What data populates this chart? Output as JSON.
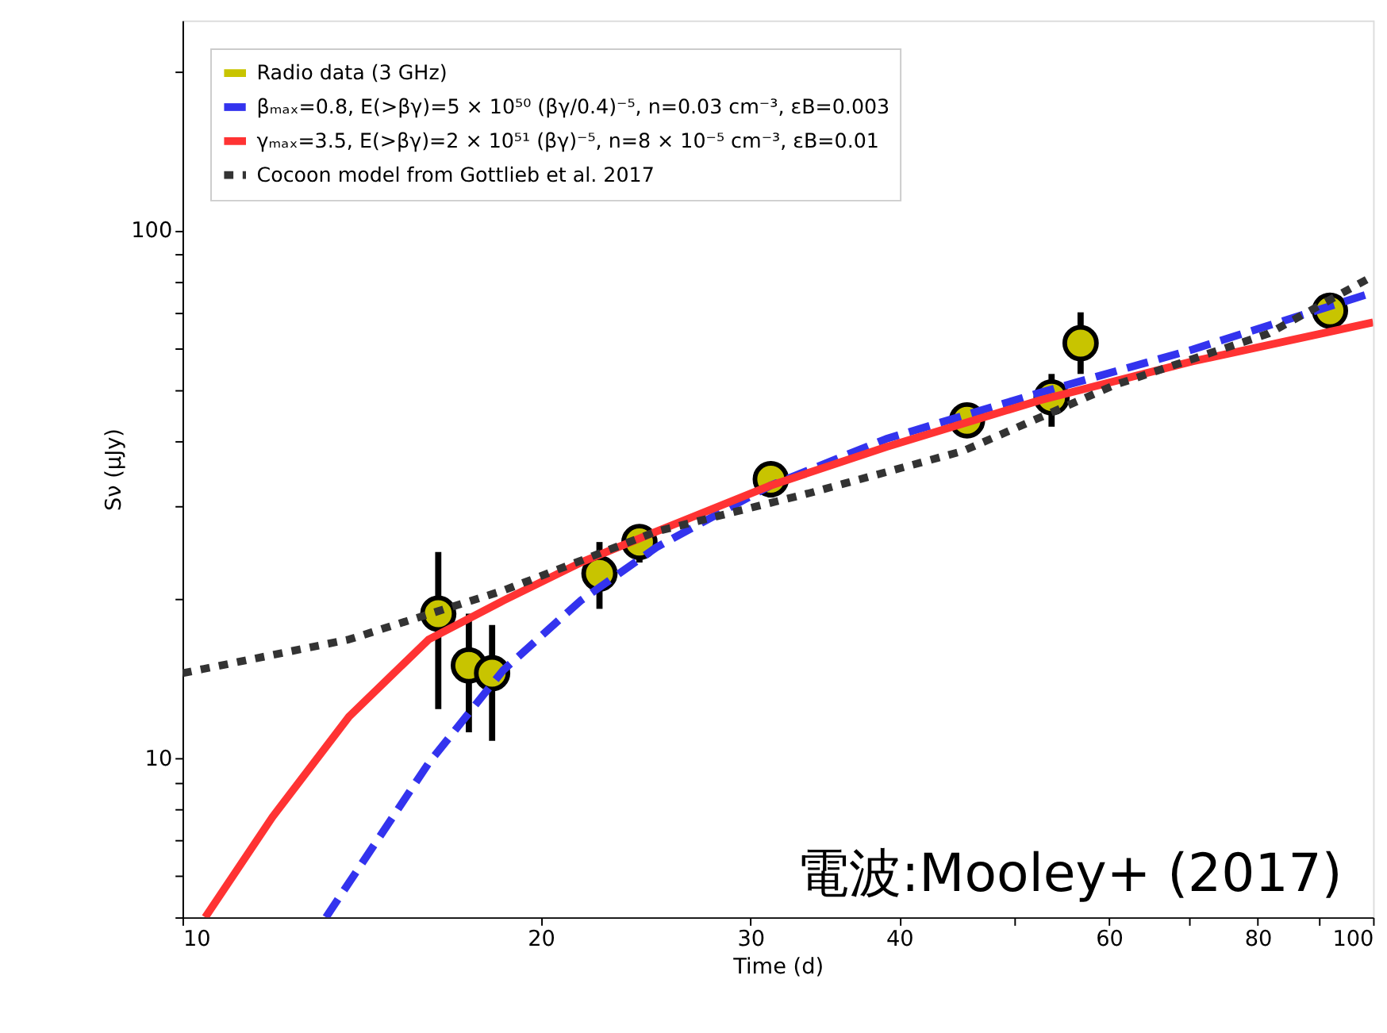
{
  "chart_data": {
    "type": "line",
    "xlabel": "Time (d)",
    "ylabel": "Sν (μJy)",
    "log": "xy",
    "grid": false,
    "legend": "top left",
    "xlim": [
      10,
      100
    ],
    "ylim": [
      5,
      250
    ],
    "xticks": [
      10,
      20,
      30,
      40,
      {
        "value": 50,
        "label": null
      },
      60,
      {
        "value": 70,
        "label": null
      },
      80,
      {
        "value": 90,
        "label": null
      },
      100
    ],
    "yticks": [
      {
        "value": 5,
        "label": null
      },
      {
        "value": 6,
        "label": null
      },
      {
        "value": 7,
        "label": null
      },
      {
        "value": 8,
        "label": null
      },
      {
        "value": 9,
        "label": null
      },
      10,
      {
        "value": 20,
        "label": null
      },
      {
        "value": 30,
        "label": null
      },
      {
        "value": 40,
        "label": null
      },
      {
        "value": 50,
        "label": null
      },
      {
        "value": 60,
        "label": null
      },
      {
        "value": 70,
        "label": null
      },
      {
        "value": 80,
        "label": null
      },
      {
        "value": 90,
        "label": null
      },
      100,
      {
        "value": 200,
        "label": null
      }
    ],
    "annotations": [
      "電波:Mooley+ (2017)"
    ],
    "series": [
      {
        "name": "Radio data (3 GHz)",
        "type": "scatter",
        "marker": "circle",
        "color": "#c8c400",
        "x": [
          16.4,
          17.4,
          18.2,
          22.4,
          24.2,
          31.2,
          45.6,
          53.7,
          56.8,
          92.0
        ],
        "values": [
          18.8,
          15.0,
          14.5,
          22.4,
          25.7,
          33.8,
          43.7,
          48.3,
          61.2,
          70.5
        ],
        "errors": [
          [
            12.4,
            24.6
          ],
          [
            11.2,
            18.8
          ],
          [
            10.8,
            17.9
          ],
          [
            19.2,
            25.7
          ],
          [
            23.5,
            27.6
          ],
          [
            31.2,
            36.2
          ],
          [
            40.8,
            46.7
          ],
          [
            42.5,
            53.5
          ],
          [
            53.5,
            70.0
          ],
          [
            65.0,
            74.9
          ]
        ]
      },
      {
        "name": "βₘₐₓ=0.8, E(>βγ)=5 × 10⁵⁰ (βγ/0.4)⁻⁵, n=0.03 cm⁻³, εB=0.003",
        "type": "line",
        "line_style": "dashed",
        "color": "#3333ee",
        "x": [
          13.2,
          16.1,
          18.6,
          21.6,
          25.0,
          31.2,
          39.0,
          52.5,
          70.5,
          100
        ],
        "values": [
          5,
          9.8,
          14.7,
          19.9,
          25.1,
          32.9,
          40.3,
          49.3,
          59.5,
          76.3
        ]
      },
      {
        "name": "γₘₐₓ=3.5, E(>βγ)=2 × 10⁵¹ (βγ)⁻⁵, n=8 × 10⁻⁵ cm⁻³, εB=0.01",
        "type": "line",
        "line_style": "solid",
        "color": "#ff3333",
        "x": [
          10.45,
          11.9,
          13.8,
          16.1,
          18.6,
          21.6,
          25.0,
          31.2,
          39.0,
          52.5,
          70.5,
          100
        ],
        "values": [
          5,
          7.74,
          12.0,
          16.8,
          19.9,
          23.5,
          26.9,
          32.9,
          38.9,
          47.7,
          56.5,
          67.0
        ]
      },
      {
        "name": "Cocoon model from Gottlieb et al. 2017",
        "type": "line",
        "line_style": "dotted",
        "color": "#333333",
        "x": [
          10,
          13.8,
          18.6,
          25.0,
          33.6,
          45.2,
          60.7,
          81.7,
          100
        ],
        "values": [
          14.5,
          16.8,
          20.8,
          26.9,
          31.8,
          38.2,
          51.0,
          63.8,
          82
        ]
      }
    ]
  }
}
